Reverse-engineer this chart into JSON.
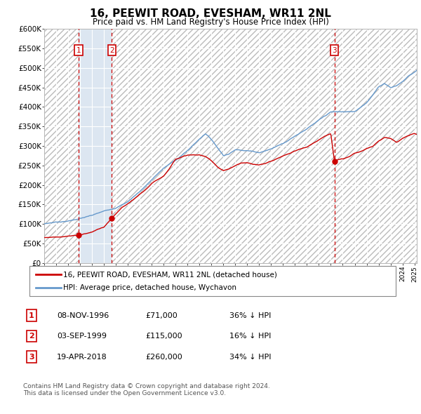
{
  "title": "16, PEEWIT ROAD, EVESHAM, WR11 2NL",
  "subtitle": "Price paid vs. HM Land Registry's House Price Index (HPI)",
  "ylim": [
    0,
    600000
  ],
  "xlim_start": 1994.0,
  "xlim_end": 2025.2,
  "yticks": [
    0,
    50000,
    100000,
    150000,
    200000,
    250000,
    300000,
    350000,
    400000,
    450000,
    500000,
    550000,
    600000
  ],
  "ytick_labels": [
    "£0",
    "£50K",
    "£100K",
    "£150K",
    "£200K",
    "£250K",
    "£300K",
    "£350K",
    "£400K",
    "£450K",
    "£500K",
    "£550K",
    "£600K"
  ],
  "sale_dates": [
    1996.86,
    1999.67,
    2018.3
  ],
  "sale_prices": [
    71000,
    115000,
    260000
  ],
  "sale_labels": [
    "1",
    "2",
    "3"
  ],
  "sale_date_strings": [
    "08-NOV-1996",
    "03-SEP-1999",
    "19-APR-2018"
  ],
  "sale_price_strings": [
    "£71,000",
    "£115,000",
    "£260,000"
  ],
  "sale_hpi_strings": [
    "36% ↓ HPI",
    "16% ↓ HPI",
    "34% ↓ HPI"
  ],
  "legend_red": "16, PEEWIT ROAD, EVESHAM, WR11 2NL (detached house)",
  "legend_blue": "HPI: Average price, detached house, Wychavon",
  "footnote": "Contains HM Land Registry data © Crown copyright and database right 2024.\nThis data is licensed under the Open Government Licence v3.0.",
  "line_color_red": "#cc0000",
  "line_color_blue": "#6699cc",
  "background_color": "#dce6f1",
  "owned_color": "#dce6f1",
  "hatch_bg": "#e8e8e8",
  "grid_color": "#ffffff",
  "vline_color": "#cc0000",
  "hpi_anchors_x": [
    1994.0,
    1995.0,
    1996.0,
    1997.0,
    1998.0,
    1999.0,
    2000.0,
    2001.0,
    2002.0,
    2003.0,
    2004.0,
    2005.0,
    2006.0,
    2007.0,
    2007.5,
    2008.0,
    2008.5,
    2009.0,
    2009.5,
    2010.0,
    2011.0,
    2012.0,
    2013.0,
    2014.0,
    2015.0,
    2016.0,
    2017.0,
    2018.0,
    2019.0,
    2020.0,
    2021.0,
    2021.5,
    2022.0,
    2022.5,
    2023.0,
    2023.5,
    2024.0,
    2024.5,
    2025.0,
    2025.2
  ],
  "hpi_anchors_y": [
    100000,
    105000,
    108000,
    115000,
    122000,
    132000,
    142000,
    158000,
    185000,
    215000,
    245000,
    265000,
    290000,
    320000,
    335000,
    320000,
    300000,
    280000,
    285000,
    295000,
    295000,
    290000,
    300000,
    315000,
    335000,
    355000,
    375000,
    395000,
    395000,
    395000,
    420000,
    440000,
    460000,
    470000,
    460000,
    465000,
    475000,
    490000,
    500000,
    505000
  ],
  "red_anchors_x": [
    1994.0,
    1995.0,
    1996.0,
    1996.86,
    1997.5,
    1998.0,
    1998.5,
    1999.0,
    1999.67,
    2000.5,
    2001.5,
    2002.5,
    2003.0,
    2004.0,
    2004.5,
    2005.0,
    2005.5,
    2006.0,
    2006.5,
    2007.0,
    2007.5,
    2008.0,
    2008.5,
    2009.0,
    2009.5,
    2010.0,
    2010.5,
    2011.0,
    2011.5,
    2012.0,
    2012.5,
    2013.0,
    2013.5,
    2014.0,
    2014.5,
    2015.0,
    2015.5,
    2016.0,
    2016.5,
    2017.0,
    2017.5,
    2018.0,
    2018.3,
    2018.5,
    2019.0,
    2019.5,
    2020.0,
    2020.5,
    2021.0,
    2021.5,
    2022.0,
    2022.5,
    2023.0,
    2023.5,
    2024.0,
    2024.5,
    2025.0,
    2025.2
  ],
  "red_anchors_y": [
    65000,
    67000,
    69000,
    71000,
    76000,
    80000,
    87000,
    92000,
    115000,
    140000,
    160000,
    185000,
    200000,
    220000,
    240000,
    265000,
    270000,
    275000,
    275000,
    275000,
    270000,
    260000,
    245000,
    235000,
    240000,
    248000,
    255000,
    255000,
    250000,
    248000,
    252000,
    258000,
    265000,
    272000,
    278000,
    285000,
    290000,
    295000,
    305000,
    315000,
    325000,
    330000,
    260000,
    262000,
    265000,
    270000,
    278000,
    282000,
    290000,
    295000,
    310000,
    320000,
    318000,
    308000,
    318000,
    325000,
    330000,
    328000
  ]
}
